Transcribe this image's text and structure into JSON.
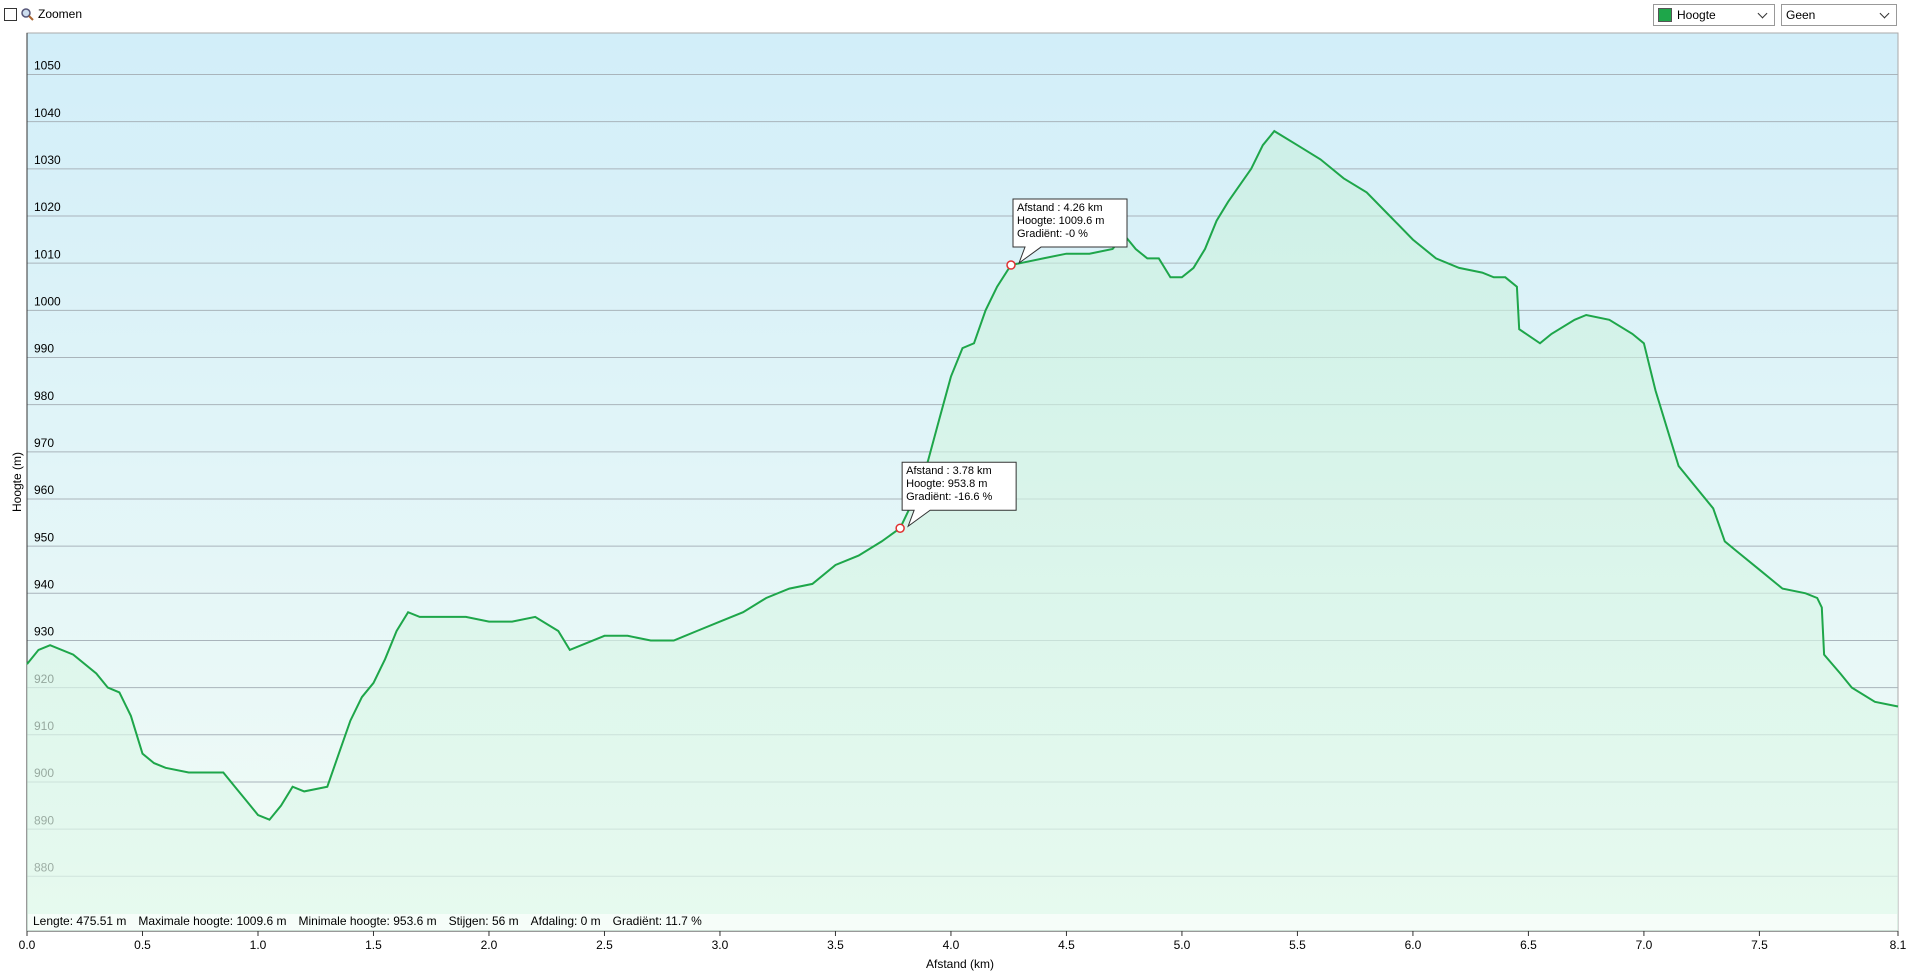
{
  "controls": {
    "zoom_label": "Zoomen",
    "secondary_select": "Geen"
  },
  "chart_data": {
    "type": "line",
    "y_label": "Hoogte (m)",
    "x_label": "Afstand  (km)",
    "x": [
      0.0,
      0.05,
      0.1,
      0.2,
      0.3,
      0.35,
      0.4,
      0.45,
      0.5,
      0.55,
      0.6,
      0.7,
      0.8,
      0.85,
      0.9,
      0.95,
      1.0,
      1.05,
      1.1,
      1.15,
      1.2,
      1.3,
      1.35,
      1.4,
      1.45,
      1.5,
      1.55,
      1.6,
      1.65,
      1.7,
      1.8,
      1.9,
      2.0,
      2.1,
      2.2,
      2.3,
      2.35,
      2.4,
      2.5,
      2.6,
      2.7,
      2.8,
      2.9,
      3.0,
      3.1,
      3.2,
      3.3,
      3.4,
      3.5,
      3.6,
      3.7,
      3.78,
      3.85,
      3.9,
      3.95,
      4.0,
      4.05,
      4.1,
      4.15,
      4.2,
      4.26,
      4.3,
      4.4,
      4.5,
      4.6,
      4.7,
      4.75,
      4.8,
      4.85,
      4.9,
      4.95,
      5.0,
      5.05,
      5.1,
      5.15,
      5.2,
      5.3,
      5.35,
      5.4,
      5.5,
      5.6,
      5.7,
      5.8,
      5.9,
      6.0,
      6.1,
      6.2,
      6.3,
      6.35,
      6.4,
      6.45,
      6.46,
      6.55,
      6.6,
      6.7,
      6.75,
      6.85,
      6.95,
      7.0,
      7.05,
      7.1,
      7.15,
      7.2,
      7.3,
      7.35,
      7.4,
      7.5,
      7.6,
      7.7,
      7.75,
      7.77,
      7.78,
      7.85,
      7.9,
      8.0,
      8.1
    ],
    "series": [
      {
        "name": "Hoogte",
        "color": "#1ea64a",
        "values": [
          925,
          928,
          929,
          927,
          923,
          920,
          919,
          914,
          906,
          904,
          903,
          902,
          902,
          902,
          899,
          896,
          893,
          892,
          895,
          899,
          898,
          899,
          906,
          913,
          918,
          921,
          926,
          932,
          936,
          935,
          935,
          935,
          934,
          934,
          935,
          932,
          928,
          929,
          931,
          931,
          930,
          930,
          932,
          934,
          936,
          939,
          941,
          942,
          946,
          948,
          951,
          953.8,
          961,
          968,
          977,
          986,
          992,
          993,
          1000,
          1005,
          1009.6,
          1010,
          1011,
          1012,
          1012,
          1013,
          1016,
          1013,
          1011,
          1011,
          1007,
          1007,
          1009,
          1013,
          1019,
          1023,
          1030,
          1035,
          1038,
          1035,
          1032,
          1028,
          1025,
          1020,
          1015,
          1011,
          1009,
          1008,
          1007,
          1007,
          1005,
          996,
          993,
          995,
          998,
          999,
          998,
          995,
          993,
          983,
          975,
          967,
          964,
          958,
          951,
          949,
          945,
          941,
          940,
          939,
          937,
          927,
          923,
          920,
          917,
          916
        ]
      }
    ],
    "xlim": [
      0,
      8.1
    ],
    "ylim": [
      868.4,
      1058.8
    ],
    "xticks": [
      {
        "value": 0,
        "label": "0.0"
      },
      0.5,
      {
        "value": 1,
        "label": "1.0"
      },
      1.5,
      {
        "value": 2,
        "label": "2.0"
      },
      2.5,
      {
        "value": 3,
        "label": "3.0"
      },
      3.5,
      {
        "value": 4,
        "label": "4.0"
      },
      4.5,
      {
        "value": 5,
        "label": "5.0"
      },
      5.5,
      {
        "value": 6,
        "label": "6.0"
      },
      6.5,
      {
        "value": 7,
        "label": "7.0"
      },
      7.5,
      8.1
    ],
    "yticks": [
      880,
      890,
      900,
      910,
      920,
      930,
      940,
      950,
      960,
      970,
      980,
      990,
      1000,
      1010,
      1020,
      1030,
      1040,
      1050
    ],
    "grid": true,
    "annotations": [
      {
        "x": 4.26,
        "y": 1009.6,
        "lines": [
          "Afstand  : 4.26 km",
          "Hoogte: 1009.6 m",
          "Gradiënt: -0 %"
        ]
      },
      {
        "x": 3.78,
        "y": 953.8,
        "lines": [
          "Afstand  : 3.78 km",
          "Hoogte: 953.8 m",
          "Gradiënt: -16.6 %"
        ]
      }
    ],
    "stats": [
      "Lengte: 475.51 m",
      "Maximale hoogte: 1009.6 m",
      "Minimale hoogte: 953.6 m",
      "Stijgen: 56 m",
      "Afdaling: 0 m",
      "Gradiënt: 11.7 %"
    ]
  }
}
